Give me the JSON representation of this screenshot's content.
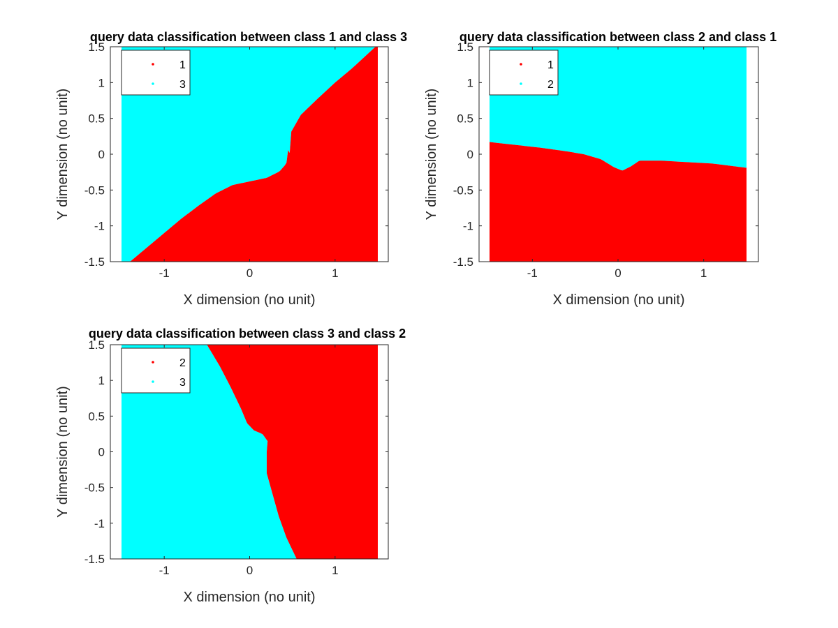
{
  "chart_data": [
    {
      "type": "scatter",
      "title": "query data classification between class 1 and class 3",
      "xlabel": "X dimension (no unit)",
      "ylabel": "Y dimension (no unit)",
      "xlim": [
        -1.5,
        1.5
      ],
      "ylim": [
        -1.5,
        1.5
      ],
      "xticks": [
        -1,
        0,
        1
      ],
      "yticks": [
        -1.5,
        -1,
        -0.5,
        0,
        0.5,
        1,
        1.5
      ],
      "xtick_labels": [
        "-1",
        "0",
        "1"
      ],
      "ytick_labels": [
        "-1.5",
        "-1",
        "-0.5",
        "0",
        "0.5",
        "1",
        "1.5"
      ],
      "grid": false,
      "legend_position": "top-left",
      "series": [
        {
          "name": "1",
          "color": "#ff0000",
          "region": "below"
        },
        {
          "name": "3",
          "color": "#00ffff",
          "region": "above"
        }
      ],
      "boundary": {
        "type": "y_of_x",
        "points": [
          [
            -1.5,
            -1.62
          ],
          [
            -1.4,
            -1.5
          ],
          [
            -1.2,
            -1.3
          ],
          [
            -1.0,
            -1.1
          ],
          [
            -0.8,
            -0.9
          ],
          [
            -0.6,
            -0.72
          ],
          [
            -0.4,
            -0.55
          ],
          [
            -0.2,
            -0.43
          ],
          [
            0.0,
            -0.38
          ],
          [
            0.2,
            -0.33
          ],
          [
            0.35,
            -0.24
          ],
          [
            0.43,
            -0.13
          ],
          [
            0.47,
            0.0
          ],
          [
            0.46,
            0.15
          ],
          [
            0.48,
            0.3
          ],
          [
            0.6,
            0.55
          ],
          [
            0.8,
            0.78
          ],
          [
            1.0,
            1.0
          ],
          [
            1.2,
            1.2
          ],
          [
            1.4,
            1.42
          ],
          [
            1.5,
            1.53
          ]
        ]
      }
    },
    {
      "type": "scatter",
      "title": "query data classification between class 2 and class 1",
      "xlabel": "X dimension (no unit)",
      "ylabel": "Y dimension (no unit)",
      "xlim": [
        -1.5,
        1.5
      ],
      "ylim": [
        -1.5,
        1.5
      ],
      "xticks": [
        -1,
        0,
        1
      ],
      "yticks": [
        -1.5,
        -1,
        -0.5,
        0,
        0.5,
        1,
        1.5
      ],
      "xtick_labels": [
        "-1",
        "0",
        "1"
      ],
      "ytick_labels": [
        "-1.5",
        "-1",
        "-0.5",
        "0",
        "0.5",
        "1",
        "1.5"
      ],
      "grid": false,
      "legend_position": "top-left",
      "series": [
        {
          "name": "1",
          "color": "#ff0000",
          "region": "below"
        },
        {
          "name": "2",
          "color": "#00ffff",
          "region": "above"
        }
      ],
      "boundary": {
        "type": "y_of_x",
        "points": [
          [
            -1.5,
            0.17
          ],
          [
            -1.2,
            0.13
          ],
          [
            -0.9,
            0.09
          ],
          [
            -0.6,
            0.04
          ],
          [
            -0.4,
            0.0
          ],
          [
            -0.2,
            -0.07
          ],
          [
            -0.05,
            -0.18
          ],
          [
            0.05,
            -0.23
          ],
          [
            0.15,
            -0.17
          ],
          [
            0.25,
            -0.09
          ],
          [
            0.5,
            -0.09
          ],
          [
            0.8,
            -0.11
          ],
          [
            1.1,
            -0.13
          ],
          [
            1.3,
            -0.16
          ],
          [
            1.5,
            -0.19
          ]
        ]
      }
    },
    {
      "type": "scatter",
      "title": "query data classification between class 3 and class 2",
      "xlabel": "X dimension (no unit)",
      "ylabel": "Y dimension (no unit)",
      "xlim": [
        -1.5,
        1.5
      ],
      "ylim": [
        -1.5,
        1.5
      ],
      "xticks": [
        -1,
        0,
        1
      ],
      "yticks": [
        -1.5,
        -1,
        -0.5,
        0,
        0.5,
        1,
        1.5
      ],
      "xtick_labels": [
        "-1",
        "0",
        "1"
      ],
      "ytick_labels": [
        "-1.5",
        "-1",
        "-0.5",
        "0",
        "0.5",
        "1",
        "1.5"
      ],
      "grid": false,
      "legend_position": "top-left",
      "series": [
        {
          "name": "2",
          "color": "#ff0000",
          "region": "right"
        },
        {
          "name": "3",
          "color": "#00ffff",
          "region": "left"
        }
      ],
      "boundary": {
        "type": "x_of_y",
        "points": [
          [
            1.5,
            -0.5
          ],
          [
            1.2,
            -0.35
          ],
          [
            0.9,
            -0.22
          ],
          [
            0.6,
            -0.1
          ],
          [
            0.4,
            -0.03
          ],
          [
            0.3,
            0.05
          ],
          [
            0.25,
            0.15
          ],
          [
            0.15,
            0.21
          ],
          [
            0.0,
            0.2
          ],
          [
            -0.3,
            0.2
          ],
          [
            -0.6,
            0.27
          ],
          [
            -0.9,
            0.34
          ],
          [
            -1.2,
            0.43
          ],
          [
            -1.5,
            0.55
          ]
        ]
      }
    }
  ]
}
